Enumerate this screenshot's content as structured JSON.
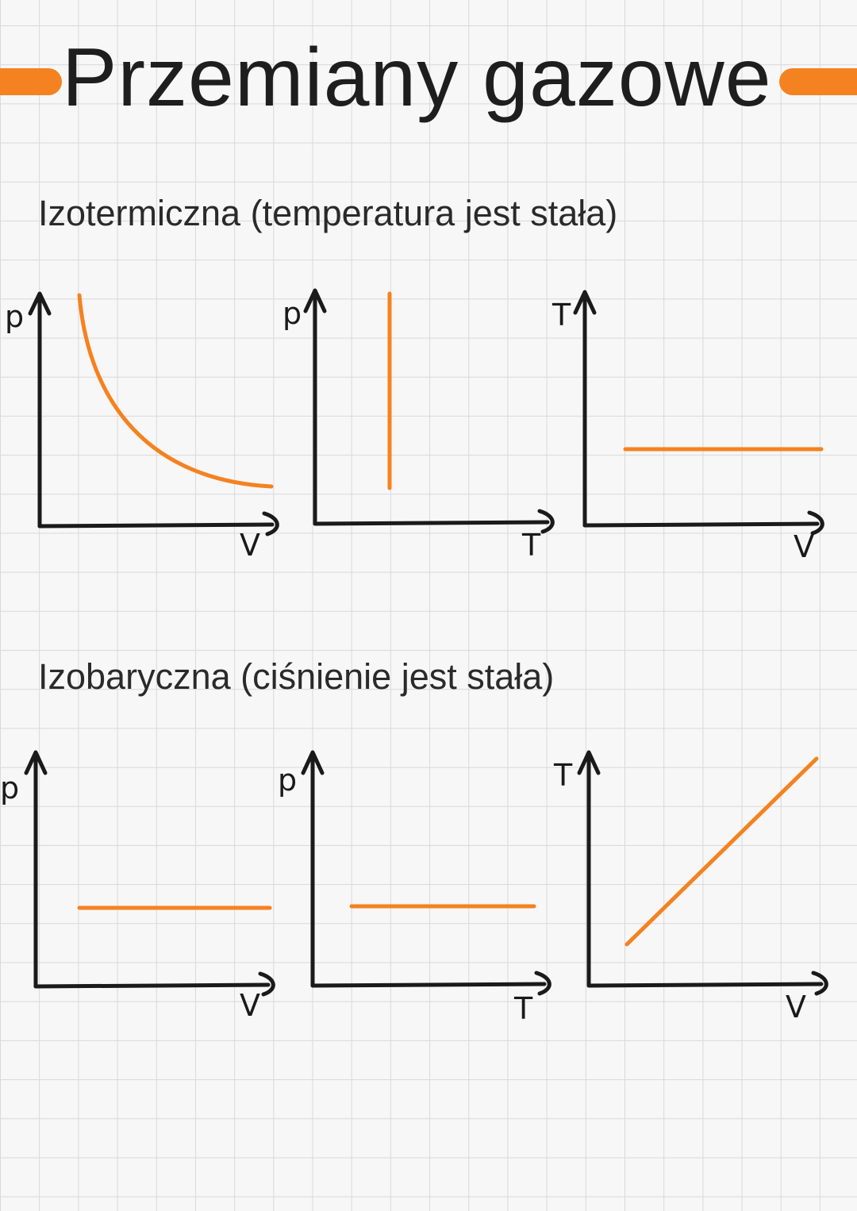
{
  "title": "Przemiany gazowe",
  "colors": {
    "accent": "#f58220",
    "ink": "#1a1a1a",
    "grid": "#d9d9d9",
    "paper": "#f7f7f7"
  },
  "sections": [
    {
      "heading": "Izotermiczna (temperatura jest stała)",
      "graphs": [
        {
          "y_label": "p",
          "x_label": "V",
          "shape": "hyperbola-decreasing"
        },
        {
          "y_label": "p",
          "x_label": "T",
          "shape": "vertical-line"
        },
        {
          "y_label": "T",
          "x_label": "V",
          "shape": "horizontal-line"
        }
      ]
    },
    {
      "heading": "Izobaryczna (ciśnienie jest stała)",
      "graphs": [
        {
          "y_label": "p",
          "x_label": "V",
          "shape": "horizontal-line"
        },
        {
          "y_label": "p",
          "x_label": "T",
          "shape": "horizontal-line"
        },
        {
          "y_label": "T",
          "x_label": "V",
          "shape": "increasing-line"
        }
      ]
    }
  ]
}
